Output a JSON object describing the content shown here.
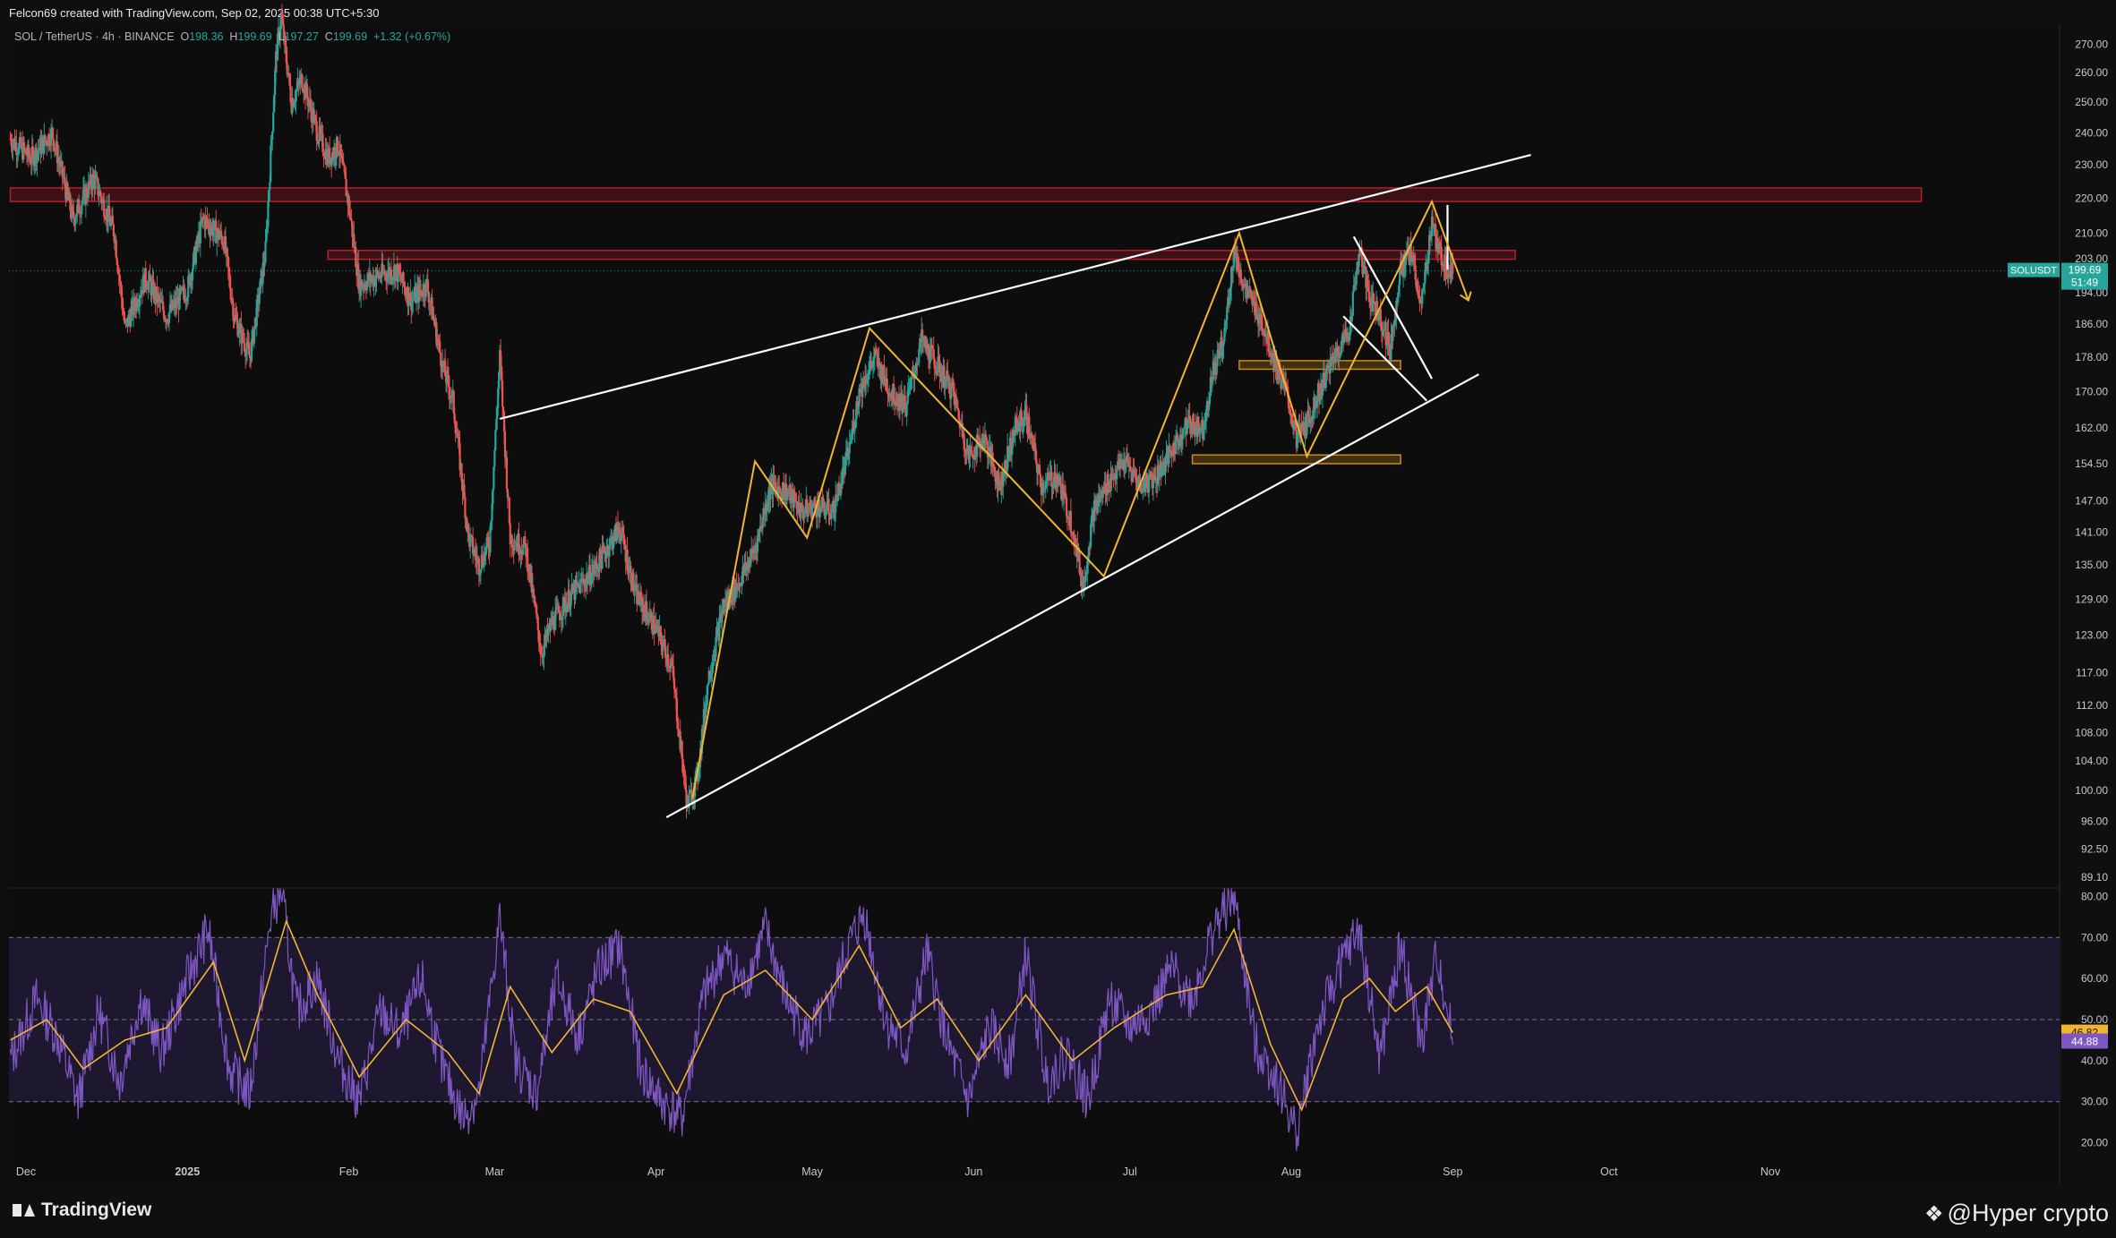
{
  "header": {
    "title": "Felcon69 created with TradingView.com, Sep 02, 2025 00:38 UTC+5:30"
  },
  "legend": {
    "symbol": "SOL / TetherUS · 4h · BINANCE",
    "o_label": "O",
    "o_value": "198.36",
    "h_label": "H",
    "h_value": "199.69",
    "l_label": "L",
    "l_value": "197.27",
    "c_label": "C",
    "c_value": "199.69",
    "change": "+1.32 (+0.67%)"
  },
  "price_tag": {
    "symbol": "SOLUSDT",
    "price": "199.69",
    "countdown": "51:49",
    "color": "#26a69a"
  },
  "rsi_tags": {
    "ma_value": "46.82",
    "ma_color": "#f2b52f",
    "rsi_value": "44.88",
    "rsi_color": "#7e57c2"
  },
  "footer": {
    "logo_text": "TradingView",
    "watermark": "@Hyper crypto"
  },
  "chart_data": [
    {
      "type": "candlestick",
      "symbol": "SOL / TetherUS",
      "interval": "4h",
      "exchange": "BINANCE",
      "y_scale": "log",
      "ylim": [
        89.1,
        275
      ],
      "y_ticks": [
        "270.00",
        "260.00",
        "250.00",
        "240.00",
        "230.00",
        "220.00",
        "210.00",
        "203.00",
        "194.00",
        "186.00",
        "178.00",
        "170.00",
        "162.00",
        "154.50",
        "147.00",
        "141.00",
        "135.00",
        "129.00",
        "123.00",
        "117.00",
        "112.00",
        "108.00",
        "104.00",
        "100.00",
        "96.00",
        "92.50",
        "89.10"
      ],
      "x_ticks": [
        "Dec",
        "2025",
        "Feb",
        "Mar",
        "Apr",
        "May",
        "Jun",
        "Jul",
        "Aug",
        "Sep",
        "Oct",
        "Nov"
      ],
      "x_tick_dates": [
        "2024-12-01",
        "2025-01-01",
        "2025-02-01",
        "2025-03-01",
        "2025-04-01",
        "2025-05-01",
        "2025-06-01",
        "2025-07-01",
        "2025-08-01",
        "2025-09-01",
        "2025-10-01",
        "2025-11-01"
      ],
      "candle_colors": {
        "up": "#26a69a",
        "down": "#ef5350"
      },
      "price_path": [
        [
          "2024-11-28",
          238
        ],
        [
          "2024-12-02",
          232
        ],
        [
          "2024-12-06",
          240
        ],
        [
          "2024-12-10",
          214
        ],
        [
          "2024-12-14",
          226
        ],
        [
          "2024-12-18",
          210
        ],
        [
          "2024-12-20",
          185
        ],
        [
          "2024-12-24",
          198
        ],
        [
          "2024-12-28",
          188
        ],
        [
          "2025-01-01",
          195
        ],
        [
          "2025-01-04",
          214
        ],
        [
          "2025-01-08",
          208
        ],
        [
          "2025-01-10",
          188
        ],
        [
          "2025-01-13",
          178
        ],
        [
          "2025-01-16",
          205
        ],
        [
          "2025-01-18",
          265
        ],
        [
          "2025-01-19",
          280
        ],
        [
          "2025-01-21",
          250
        ],
        [
          "2025-01-23",
          258
        ],
        [
          "2025-01-26",
          240
        ],
        [
          "2025-01-28",
          232
        ],
        [
          "2025-01-30",
          236
        ],
        [
          "2025-02-01",
          218
        ],
        [
          "2025-02-03",
          196
        ],
        [
          "2025-02-06",
          198
        ],
        [
          "2025-02-10",
          200
        ],
        [
          "2025-02-13",
          192
        ],
        [
          "2025-02-16",
          196
        ],
        [
          "2025-02-19",
          176
        ],
        [
          "2025-02-21",
          168
        ],
        [
          "2025-02-24",
          140
        ],
        [
          "2025-02-26",
          135
        ],
        [
          "2025-02-28",
          139
        ],
        [
          "2025-03-02",
          178
        ],
        [
          "2025-03-04",
          140
        ],
        [
          "2025-03-07",
          138
        ],
        [
          "2025-03-10",
          120
        ],
        [
          "2025-03-12",
          125
        ],
        [
          "2025-03-16",
          130
        ],
        [
          "2025-03-20",
          134
        ],
        [
          "2025-03-25",
          142
        ],
        [
          "2025-03-28",
          130
        ],
        [
          "2025-04-01",
          124
        ],
        [
          "2025-04-04",
          118
        ],
        [
          "2025-04-07",
          98
        ],
        [
          "2025-04-09",
          102
        ],
        [
          "2025-04-11",
          116
        ],
        [
          "2025-04-14",
          128
        ],
        [
          "2025-04-17",
          132
        ],
        [
          "2025-04-20",
          138
        ],
        [
          "2025-04-23",
          150
        ],
        [
          "2025-04-26",
          149
        ],
        [
          "2025-04-29",
          145
        ],
        [
          "2025-05-02",
          146
        ],
        [
          "2025-05-05",
          145
        ],
        [
          "2025-05-08",
          157
        ],
        [
          "2025-05-10",
          170
        ],
        [
          "2025-05-13",
          178
        ],
        [
          "2025-05-16",
          170
        ],
        [
          "2025-05-19",
          167
        ],
        [
          "2025-05-22",
          182
        ],
        [
          "2025-05-25",
          176
        ],
        [
          "2025-05-28",
          170
        ],
        [
          "2025-05-31",
          156
        ],
        [
          "2025-06-03",
          160
        ],
        [
          "2025-06-06",
          150
        ],
        [
          "2025-06-09",
          162
        ],
        [
          "2025-06-11",
          165
        ],
        [
          "2025-06-14",
          150
        ],
        [
          "2025-06-17",
          152
        ],
        [
          "2025-06-20",
          142
        ],
        [
          "2025-06-22",
          131
        ],
        [
          "2025-06-24",
          145
        ],
        [
          "2025-06-27",
          151
        ],
        [
          "2025-06-30",
          155
        ],
        [
          "2025-07-03",
          150
        ],
        [
          "2025-07-06",
          152
        ],
        [
          "2025-07-09",
          157
        ],
        [
          "2025-07-12",
          163
        ],
        [
          "2025-07-15",
          162
        ],
        [
          "2025-07-17",
          175
        ],
        [
          "2025-07-19",
          182
        ],
        [
          "2025-07-21",
          205
        ],
        [
          "2025-07-23",
          195
        ],
        [
          "2025-07-26",
          188
        ],
        [
          "2025-07-29",
          176
        ],
        [
          "2025-07-31",
          170
        ],
        [
          "2025-08-02",
          160
        ],
        [
          "2025-08-04",
          163
        ],
        [
          "2025-08-07",
          172
        ],
        [
          "2025-08-10",
          180
        ],
        [
          "2025-08-12",
          184
        ],
        [
          "2025-08-14",
          205
        ],
        [
          "2025-08-16",
          193
        ],
        [
          "2025-08-18",
          188
        ],
        [
          "2025-08-20",
          180
        ],
        [
          "2025-08-22",
          200
        ],
        [
          "2025-08-24",
          205
        ],
        [
          "2025-08-26",
          190
        ],
        [
          "2025-08-28",
          214
        ],
        [
          "2025-08-29",
          206
        ],
        [
          "2025-08-31",
          200
        ],
        [
          "2025-09-01",
          199.69
        ]
      ],
      "zones": [
        {
          "from": "2024-11-28",
          "to": "2025-11-30",
          "low": 219,
          "high": 223,
          "color": "#b71c2c"
        },
        {
          "from": "2025-01-28",
          "to": "2025-09-13",
          "low": 202.8,
          "high": 205.2,
          "color": "#b71c2c"
        },
        {
          "from": "2025-07-22",
          "to": "2025-08-22",
          "low": 175.2,
          "high": 177.2,
          "color": "#c98a1a"
        },
        {
          "from": "2025-07-13",
          "to": "2025-08-22",
          "low": 154.5,
          "high": 156.3,
          "color": "#c98a1a"
        }
      ],
      "trendlines": [
        {
          "color": "#ffffff",
          "from": [
            "2025-03-02",
            164
          ],
          "to": [
            "2025-09-16",
            233
          ]
        },
        {
          "color": "#ffffff",
          "from": [
            "2025-04-03",
            96.5
          ],
          "to": [
            "2025-09-06",
            174
          ]
        },
        {
          "color": "#ffffff",
          "from": [
            "2025-08-13",
            209
          ],
          "to": [
            "2025-08-28",
            173
          ]
        },
        {
          "color": "#ffffff",
          "from": [
            "2025-08-11",
            188
          ],
          "to": [
            "2025-08-27",
            168
          ]
        },
        {
          "color": "#ffffff",
          "from": [
            "2025-08-31",
            218
          ],
          "to": [
            "2025-08-31",
            200
          ]
        }
      ],
      "pattern_path": {
        "color": "#f2b52f",
        "points": [
          [
            "2025-04-08",
            99
          ],
          [
            "2025-04-20",
            155
          ],
          [
            "2025-04-30",
            140
          ],
          [
            "2025-05-12",
            185
          ],
          [
            "2025-06-26",
            133
          ],
          [
            "2025-07-22",
            210
          ],
          [
            "2025-08-04",
            156
          ],
          [
            "2025-08-28",
            219
          ],
          [
            "2025-09-04",
            192
          ]
        ]
      },
      "last_price": 199.69
    },
    {
      "type": "line",
      "indicator": "RSI",
      "ylim": [
        17.5,
        82.5
      ],
      "y_ticks": [
        "80.00",
        "70.00",
        "60.00",
        "50.00",
        "40.00",
        "30.00",
        "20.00"
      ],
      "band": [
        30,
        70
      ],
      "midline": 50,
      "series": [
        {
          "color": "#7e57c2",
          "path": [
            [
              "2024-11-28",
              40
            ],
            [
              "2024-12-03",
              55
            ],
            [
              "2024-12-07",
              46
            ],
            [
              "2024-12-11",
              30
            ],
            [
              "2024-12-15",
              52
            ],
            [
              "2024-12-19",
              35
            ],
            [
              "2024-12-23",
              55
            ],
            [
              "2024-12-27",
              42
            ],
            [
              "2025-01-01",
              60
            ],
            [
              "2025-01-05",
              72
            ],
            [
              "2025-01-09",
              38
            ],
            [
              "2025-01-13",
              32
            ],
            [
              "2025-01-17",
              75
            ],
            [
              "2025-01-19",
              82
            ],
            [
              "2025-01-22",
              52
            ],
            [
              "2025-01-26",
              60
            ],
            [
              "2025-01-30",
              40
            ],
            [
              "2025-02-03",
              30
            ],
            [
              "2025-02-07",
              52
            ],
            [
              "2025-02-11",
              46
            ],
            [
              "2025-02-15",
              60
            ],
            [
              "2025-02-19",
              38
            ],
            [
              "2025-02-23",
              26
            ],
            [
              "2025-02-26",
              32
            ],
            [
              "2025-03-02",
              75
            ],
            [
              "2025-03-05",
              40
            ],
            [
              "2025-03-09",
              32
            ],
            [
              "2025-03-13",
              60
            ],
            [
              "2025-03-17",
              46
            ],
            [
              "2025-03-21",
              62
            ],
            [
              "2025-03-25",
              68
            ],
            [
              "2025-03-29",
              38
            ],
            [
              "2025-04-02",
              30
            ],
            [
              "2025-04-06",
              26
            ],
            [
              "2025-04-10",
              55
            ],
            [
              "2025-04-14",
              66
            ],
            [
              "2025-04-18",
              58
            ],
            [
              "2025-04-22",
              72
            ],
            [
              "2025-04-26",
              55
            ],
            [
              "2025-04-30",
              46
            ],
            [
              "2025-05-04",
              52
            ],
            [
              "2025-05-08",
              68
            ],
            [
              "2025-05-11",
              76
            ],
            [
              "2025-05-15",
              50
            ],
            [
              "2025-05-19",
              42
            ],
            [
              "2025-05-23",
              66
            ],
            [
              "2025-05-27",
              44
            ],
            [
              "2025-05-31",
              30
            ],
            [
              "2025-06-04",
              48
            ],
            [
              "2025-06-08",
              40
            ],
            [
              "2025-06-11",
              66
            ],
            [
              "2025-06-15",
              35
            ],
            [
              "2025-06-19",
              42
            ],
            [
              "2025-06-23",
              30
            ],
            [
              "2025-06-27",
              55
            ],
            [
              "2025-07-01",
              48
            ],
            [
              "2025-07-05",
              52
            ],
            [
              "2025-07-09",
              62
            ],
            [
              "2025-07-13",
              55
            ],
            [
              "2025-07-17",
              72
            ],
            [
              "2025-07-21",
              80
            ],
            [
              "2025-07-25",
              44
            ],
            [
              "2025-07-29",
              36
            ],
            [
              "2025-08-02",
              22
            ],
            [
              "2025-08-06",
              48
            ],
            [
              "2025-08-10",
              62
            ],
            [
              "2025-08-14",
              72
            ],
            [
              "2025-08-18",
              40
            ],
            [
              "2025-08-22",
              68
            ],
            [
              "2025-08-26",
              44
            ],
            [
              "2025-08-29",
              66
            ],
            [
              "2025-09-01",
              44.88
            ]
          ]
        },
        {
          "color": "#f2b52f",
          "path": [
            [
              "2024-11-28",
              45
            ],
            [
              "2024-12-05",
              50
            ],
            [
              "2024-12-12",
              38
            ],
            [
              "2024-12-20",
              45
            ],
            [
              "2024-12-28",
              48
            ],
            [
              "2025-01-06",
              64
            ],
            [
              "2025-01-12",
              40
            ],
            [
              "2025-01-20",
              74
            ],
            [
              "2025-01-26",
              56
            ],
            [
              "2025-02-03",
              36
            ],
            [
              "2025-02-12",
              50
            ],
            [
              "2025-02-20",
              42
            ],
            [
              "2025-02-26",
              32
            ],
            [
              "2025-03-04",
              58
            ],
            [
              "2025-03-12",
              42
            ],
            [
              "2025-03-20",
              55
            ],
            [
              "2025-03-27",
              52
            ],
            [
              "2025-04-05",
              32
            ],
            [
              "2025-04-14",
              56
            ],
            [
              "2025-04-22",
              62
            ],
            [
              "2025-05-01",
              50
            ],
            [
              "2025-05-10",
              68
            ],
            [
              "2025-05-18",
              48
            ],
            [
              "2025-05-25",
              55
            ],
            [
              "2025-06-02",
              40
            ],
            [
              "2025-06-11",
              56
            ],
            [
              "2025-06-20",
              40
            ],
            [
              "2025-06-28",
              48
            ],
            [
              "2025-07-08",
              56
            ],
            [
              "2025-07-15",
              58
            ],
            [
              "2025-07-21",
              72
            ],
            [
              "2025-07-28",
              44
            ],
            [
              "2025-08-03",
              28
            ],
            [
              "2025-08-11",
              55
            ],
            [
              "2025-08-16",
              60
            ],
            [
              "2025-08-21",
              52
            ],
            [
              "2025-08-27",
              58
            ],
            [
              "2025-09-01",
              46.82
            ]
          ]
        }
      ]
    }
  ]
}
